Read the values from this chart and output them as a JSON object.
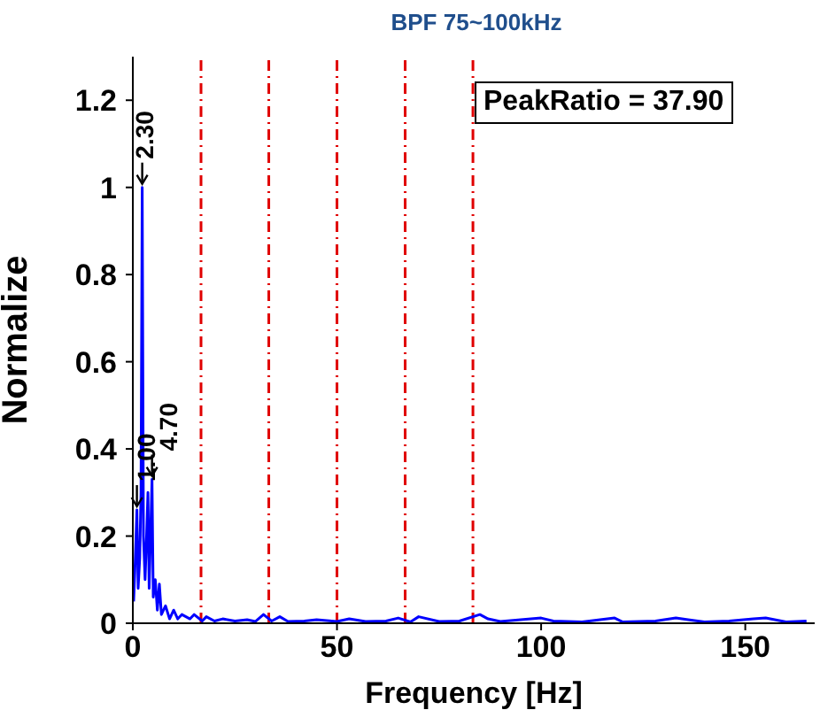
{
  "chart_data": {
    "type": "line",
    "title": "BPF 75~100kHz",
    "xlabel": "Frequency [Hz]",
    "ylabel": "Normalize",
    "x": [
      0.2,
      0.5,
      1.0,
      1.3,
      1.7,
      2.0,
      2.3,
      2.6,
      3.0,
      3.3,
      3.7,
      4.0,
      4.7,
      5.0,
      5.5,
      6.0,
      6.5,
      7.0,
      8,
      9,
      10,
      11,
      12,
      14,
      15,
      17,
      18,
      20,
      22,
      25,
      28,
      30,
      32,
      34,
      36,
      38,
      42,
      45,
      50,
      53,
      57,
      62,
      65,
      68,
      70,
      75,
      80,
      85,
      87,
      90,
      95,
      100,
      103,
      110,
      118,
      120,
      128,
      133,
      136,
      140,
      146,
      152,
      155,
      160,
      165
    ],
    "series": [
      {
        "color": "#0000ff",
        "values": [
          0.05,
          0.12,
          0.26,
          0.08,
          0.15,
          0.3,
          1.0,
          0.2,
          0.1,
          0.18,
          0.3,
          0.08,
          0.33,
          0.06,
          0.1,
          0.03,
          0.09,
          0.02,
          0.04,
          0.01,
          0.03,
          0.01,
          0.02,
          0.01,
          0.02,
          0.005,
          0.015,
          0.005,
          0.01,
          0.005,
          0.008,
          0.004,
          0.02,
          0.005,
          0.015,
          0.004,
          0.005,
          0.008,
          0.004,
          0.01,
          0.004,
          0.005,
          0.012,
          0.003,
          0.015,
          0.004,
          0.005,
          0.02,
          0.01,
          0.004,
          0.008,
          0.012,
          0.005,
          0.003,
          0.012,
          0.003,
          0.005,
          0.012,
          0.008,
          0.003,
          0.005,
          0.01,
          0.012,
          0.003,
          0.005
        ]
      }
    ],
    "xlim": [
      0,
      167
    ],
    "xticks": [
      0,
      50,
      100,
      150
    ],
    "ylim": [
      0,
      1.3
    ],
    "yticks": [
      0,
      0.2,
      0.4,
      0.6,
      0.8,
      1,
      1.2
    ],
    "ref_lines": [
      {
        "axis": "x",
        "value": 16.7,
        "color": "#e00000",
        "line_style": "dashed"
      },
      {
        "axis": "x",
        "value": 33.3,
        "color": "#e00000",
        "line_style": "dashed"
      },
      {
        "axis": "x",
        "value": 50,
        "color": "#e00000",
        "line_style": "dashed"
      },
      {
        "axis": "x",
        "value": 66.7,
        "color": "#e00000",
        "line_style": "dashed"
      },
      {
        "axis": "x",
        "value": 83.3,
        "color": "#e00000",
        "line_style": "dashed"
      }
    ],
    "annotations": [
      {
        "text": "2.30",
        "x": 2.3,
        "y": 1.0
      },
      {
        "text": "1.00",
        "x": 1.0,
        "y": 0.26
      },
      {
        "text": "4.70",
        "x": 4.7,
        "y": 0.33
      },
      "PeakRatio = 37.90"
    ],
    "marker": "none",
    "line_style": "solid"
  }
}
